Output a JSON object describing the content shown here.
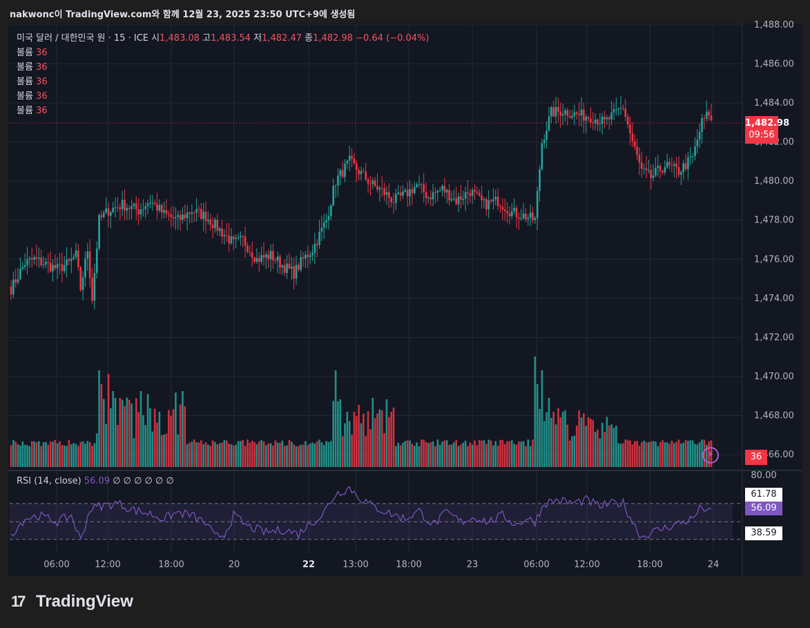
{
  "caption": "nakwonc이 TradingView.com와 함께 12월 23, 2025 23:50 UTC+9에 생성됨",
  "legend": {
    "symbol": "미국 달러 / 대한민국 원 · 15 · ICE",
    "open_label": "시",
    "open": "1,483.08",
    "high_label": "고",
    "high": "1,483.54",
    "low_label": "저",
    "low": "1,482.47",
    "close_label": "종",
    "close": "1,482.98",
    "change": "−0.64 (−0.04%)",
    "volume_rows": [
      {
        "label": "볼륨",
        "value": "36"
      },
      {
        "label": "볼륨",
        "value": "36"
      },
      {
        "label": "볼륨",
        "value": "36"
      },
      {
        "label": "볼륨",
        "value": "36"
      },
      {
        "label": "볼륨",
        "value": "36"
      }
    ]
  },
  "price_tag": {
    "price": "1,482.98",
    "countdown": "09:56"
  },
  "volume_tag": "36",
  "rsi": {
    "label": "RSI (14, close)",
    "value": "56.09",
    "extras": "∅ ∅ ∅ ∅ ∅ ∅",
    "upper_band": "61.78",
    "lower_band": "38.59",
    "top_label": "80.00"
  },
  "brand": "TradingView",
  "colors": {
    "up": "#26a69a",
    "down": "#f23645",
    "rsi": "#7e57c2",
    "background": "#131722"
  },
  "chart_data": {
    "type": "candlestick",
    "title": "미국 달러 / 대한민국 원 · 15 · ICE",
    "y_ticks": [
      "1,488.00",
      "1,486.00",
      "1,484.00",
      "1,482.00",
      "1,480.00",
      "1,478.00",
      "1,476.00",
      "1,474.00",
      "1,472.00",
      "1,470.00",
      "1,468.00",
      "1,466.00"
    ],
    "ylim": [
      1466,
      1488
    ],
    "x_ticks": [
      "06:00",
      "12:00",
      "18:00",
      "20",
      "22",
      "13:00",
      "18:00",
      "23",
      "06:00",
      "12:00",
      "18:00",
      "24"
    ],
    "approx_close_path": [
      [
        0,
        1474.5
      ],
      [
        6,
        1475.8
      ],
      [
        10,
        1476.0
      ],
      [
        20,
        1475.5
      ],
      [
        25,
        1475.8
      ],
      [
        28,
        1476.2
      ],
      [
        30,
        1474.5
      ],
      [
        33,
        1476.5
      ],
      [
        35,
        1474.0
      ],
      [
        38,
        1478.0
      ],
      [
        42,
        1478.5
      ],
      [
        48,
        1478.8
      ],
      [
        55,
        1478.5
      ],
      [
        60,
        1479.0
      ],
      [
        66,
        1478.3
      ],
      [
        72,
        1478.0
      ],
      [
        78,
        1478.5
      ],
      [
        84,
        1478.2
      ],
      [
        90,
        1477.5
      ],
      [
        96,
        1476.8
      ],
      [
        100,
        1477.0
      ],
      [
        106,
        1476.0
      ],
      [
        112,
        1476.2
      ],
      [
        118,
        1475.6
      ],
      [
        122,
        1475.3
      ],
      [
        126,
        1476.0
      ],
      [
        130,
        1476.5
      ],
      [
        136,
        1478.0
      ],
      [
        140,
        1480.0
      ],
      [
        146,
        1481.0
      ],
      [
        150,
        1480.5
      ],
      [
        156,
        1479.8
      ],
      [
        160,
        1479.5
      ],
      [
        165,
        1479.0
      ],
      [
        170,
        1479.3
      ],
      [
        175,
        1479.8
      ],
      [
        180,
        1479.2
      ],
      [
        186,
        1479.6
      ],
      [
        192,
        1479.0
      ],
      [
        198,
        1479.5
      ],
      [
        204,
        1478.8
      ],
      [
        210,
        1479.0
      ],
      [
        216,
        1478.4
      ],
      [
        222,
        1478.2
      ],
      [
        226,
        1478.0
      ],
      [
        229,
        1482.0
      ],
      [
        233,
        1483.5
      ],
      [
        238,
        1483.6
      ],
      [
        244,
        1483.4
      ],
      [
        250,
        1483.3
      ],
      [
        256,
        1483.0
      ],
      [
        260,
        1483.4
      ],
      [
        264,
        1483.8
      ],
      [
        268,
        1482.0
      ],
      [
        272,
        1480.5
      ],
      [
        276,
        1480.2
      ],
      [
        282,
        1480.8
      ],
      [
        288,
        1480.5
      ],
      [
        294,
        1481.2
      ],
      [
        298,
        1483.0
      ],
      [
        301,
        1483.5
      ],
      [
        302,
        1483.0
      ]
    ],
    "volume_series": "volume bars per candle, spikes near 12:00, 22 13:00 and 23 06:00",
    "rsi_series": {
      "name": "RSI (14, close)",
      "upper_band": 61.78,
      "lower_band": 38.59,
      "last": 56.09,
      "approx_path": [
        [
          0,
          42
        ],
        [
          6,
          52
        ],
        [
          12,
          54
        ],
        [
          20,
          50
        ],
        [
          26,
          54
        ],
        [
          30,
          38
        ],
        [
          34,
          58
        ],
        [
          38,
          60
        ],
        [
          46,
          62
        ],
        [
          52,
          58
        ],
        [
          60,
          55
        ],
        [
          66,
          52
        ],
        [
          72,
          56
        ],
        [
          78,
          54
        ],
        [
          84,
          49
        ],
        [
          88,
          40
        ],
        [
          92,
          42
        ],
        [
          96,
          54
        ],
        [
          102,
          47
        ],
        [
          110,
          43
        ],
        [
          118,
          45
        ],
        [
          124,
          42
        ],
        [
          128,
          48
        ],
        [
          134,
          54
        ],
        [
          140,
          68
        ],
        [
          146,
          72
        ],
        [
          150,
          66
        ],
        [
          156,
          60
        ],
        [
          164,
          55
        ],
        [
          170,
          52
        ],
        [
          176,
          57
        ],
        [
          182,
          48
        ],
        [
          188,
          56
        ],
        [
          194,
          50
        ],
        [
          200,
          53
        ],
        [
          206,
          50
        ],
        [
          212,
          54
        ],
        [
          218,
          48
        ],
        [
          222,
          52
        ],
        [
          226,
          50
        ],
        [
          230,
          62
        ],
        [
          236,
          64
        ],
        [
          242,
          62
        ],
        [
          248,
          64
        ],
        [
          254,
          60
        ],
        [
          260,
          62
        ],
        [
          264,
          62
        ],
        [
          268,
          50
        ],
        [
          272,
          40
        ],
        [
          276,
          43
        ],
        [
          282,
          46
        ],
        [
          288,
          49
        ],
        [
          294,
          52
        ],
        [
          298,
          60
        ],
        [
          301,
          56
        ]
      ]
    }
  }
}
